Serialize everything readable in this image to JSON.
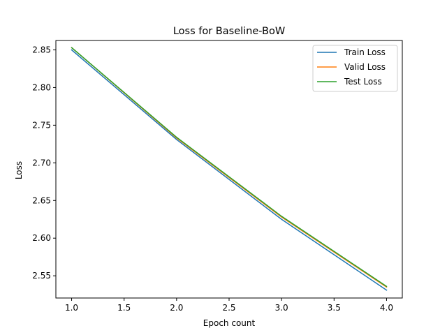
{
  "chart_data": {
    "type": "line",
    "title": "Loss for Baseline-BoW",
    "xlabel": "Epoch count",
    "ylabel": "Loss",
    "x": [
      1.0,
      2.0,
      3.0,
      4.0
    ],
    "xlim": [
      0.85,
      4.15
    ],
    "ylim": [
      2.5205,
      2.8625
    ],
    "xticks": [
      1.0,
      1.5,
      2.0,
      2.5,
      3.0,
      3.5,
      4.0
    ],
    "xtick_labels": [
      "1.0",
      "1.5",
      "2.0",
      "2.5",
      "3.0",
      "3.5",
      "4.0"
    ],
    "yticks": [
      2.55,
      2.6,
      2.65,
      2.7,
      2.75,
      2.8,
      2.85
    ],
    "ytick_labels": [
      "2.55",
      "2.60",
      "2.65",
      "2.70",
      "2.75",
      "2.80",
      "2.85"
    ],
    "grid": false,
    "legend_position": "top-right",
    "series": [
      {
        "name": "Train Loss",
        "color": "#1f77b4",
        "values": [
          2.85,
          2.731,
          2.625,
          2.531
        ]
      },
      {
        "name": "Valid Loss",
        "color": "#ff7f0e",
        "values": [
          2.853,
          2.733,
          2.628,
          2.535
        ]
      },
      {
        "name": "Test Loss",
        "color": "#2ca02c",
        "values": [
          2.853,
          2.734,
          2.629,
          2.536
        ]
      }
    ]
  }
}
